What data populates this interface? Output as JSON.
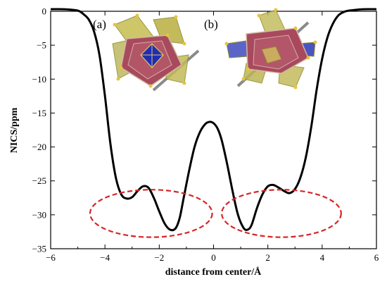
{
  "chart_data": {
    "type": "line",
    "title": "",
    "xlabel": "distance from center/Å",
    "ylabel": "NICS/ppm",
    "xlim": [
      -6,
      6
    ],
    "ylim": [
      -35,
      0
    ],
    "xticks": [
      -6,
      -4,
      -2,
      0,
      2,
      4,
      6
    ],
    "yticks": [
      0,
      -5,
      -10,
      -15,
      -20,
      -25,
      -30,
      -35
    ],
    "xtick_labels": [
      "−6",
      "−4",
      "−2",
      "0",
      "2",
      "4",
      "6"
    ],
    "ytick_labels": [
      "0",
      "−5",
      "−10",
      "−15",
      "−20",
      "−25",
      "−30",
      "−35"
    ],
    "grid": false,
    "series": [
      {
        "color": "#000000",
        "x": [
          -6.0,
          -5.5,
          -5.0,
          -4.8,
          -4.6,
          -4.4,
          -4.2,
          -4.0,
          -3.8,
          -3.6,
          -3.4,
          -3.2,
          -3.0,
          -2.8,
          -2.6,
          -2.4,
          -2.2,
          -2.0,
          -1.8,
          -1.6,
          -1.4,
          -1.25,
          -1.1,
          -0.9,
          -0.7,
          -0.5,
          -0.3,
          -0.15,
          0.0,
          0.15,
          0.3,
          0.5,
          0.7,
          0.9,
          1.1,
          1.25,
          1.4,
          1.6,
          1.8,
          2.0,
          2.2,
          2.4,
          2.6,
          2.8,
          3.0,
          3.2,
          3.4,
          3.6,
          3.8,
          4.0,
          4.2,
          4.4,
          4.6,
          4.8,
          5.0,
          5.5,
          6.0
        ],
        "y": [
          0.3,
          0.3,
          0.1,
          -0.4,
          -1.2,
          -3.0,
          -6.5,
          -12.5,
          -19.5,
          -24.5,
          -27.0,
          -27.6,
          -27.4,
          -26.5,
          -25.8,
          -26.0,
          -27.5,
          -29.5,
          -31.3,
          -32.2,
          -32.0,
          -30.5,
          -27.5,
          -23.5,
          -20.0,
          -17.8,
          -16.6,
          -16.3,
          -16.5,
          -17.3,
          -19.0,
          -22.5,
          -26.5,
          -30.0,
          -31.9,
          -32.2,
          -31.5,
          -29.0,
          -27.0,
          -25.8,
          -25.6,
          -26.0,
          -26.5,
          -26.8,
          -26.2,
          -24.5,
          -21.5,
          -17.0,
          -11.5,
          -7.0,
          -3.8,
          -1.8,
          -0.6,
          -0.1,
          0.1,
          0.3,
          0.3
        ]
      }
    ],
    "annotations": [
      {
        "text": "(a)",
        "kind": "panel-label"
      },
      {
        "text": "(b)",
        "kind": "panel-label"
      },
      {
        "kind": "dashed-ellipse",
        "color": "#d62728",
        "cx": -2.3,
        "cy": -29.8,
        "rx": 2.25,
        "ry": 3.5
      },
      {
        "kind": "dashed-ellipse",
        "color": "#d62728",
        "cx": 2.5,
        "cy": -29.8,
        "rx": 2.2,
        "ry": 3.5
      }
    ],
    "inset_images": [
      {
        "panel": "(a)",
        "description": "polyhedral cluster structure with yellow, red and blue polyhedra"
      },
      {
        "panel": "(b)",
        "description": "polyhedral cluster structure with yellow, red and blue polyhedra"
      }
    ]
  }
}
